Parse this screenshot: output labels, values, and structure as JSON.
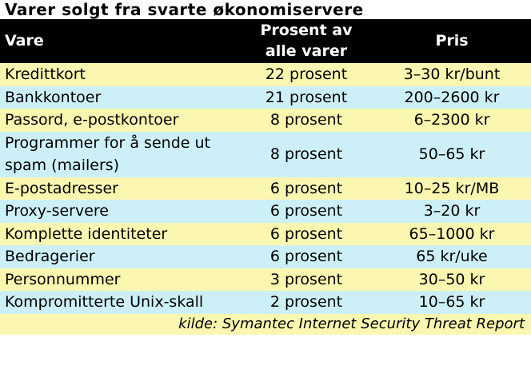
{
  "title": "Varer solgt fra svarte økonomiservere",
  "table": {
    "headers": {
      "item": "Vare",
      "percent_line1": "Prosent av",
      "percent_line2": "alle varer",
      "price": "Pris"
    },
    "rows": [
      {
        "item": "Kredittkort",
        "percent": "22 prosent",
        "price": "3–30 kr/bunt"
      },
      {
        "item": "Bankkontoer",
        "percent": "21 prosent",
        "price": "200–2600 kr"
      },
      {
        "item": "Passord, e-postkontoer",
        "percent": "8 prosent",
        "price": "6–2300 kr"
      },
      {
        "item": "Programmer for å sende ut spam (mailers)",
        "percent": "8 prosent",
        "price": "50–65 kr"
      },
      {
        "item": "E-postadresser",
        "percent": "6 prosent",
        "price": "10–25 kr/MB"
      },
      {
        "item": "Proxy-servere",
        "percent": "6 prosent",
        "price": "3–20 kr"
      },
      {
        "item": "Komplette identiteter",
        "percent": "6 prosent",
        "price": "65–1000 kr"
      },
      {
        "item": "Bedragerier",
        "percent": "6 prosent",
        "price": "65 kr/uke"
      },
      {
        "item": "Personnummer",
        "percent": "3 prosent",
        "price": "30–50 kr"
      },
      {
        "item": "Kompromitterte Unix-skall",
        "percent": "2 prosent",
        "price": "10–65 kr"
      }
    ]
  },
  "source": "kilde: Symantec Internet Security Threat Report",
  "colors": {
    "header_bg": "#000000",
    "header_text": "#ffffff",
    "row_yellow": "#fbf7b0",
    "row_blue": "#cdf0f8"
  }
}
